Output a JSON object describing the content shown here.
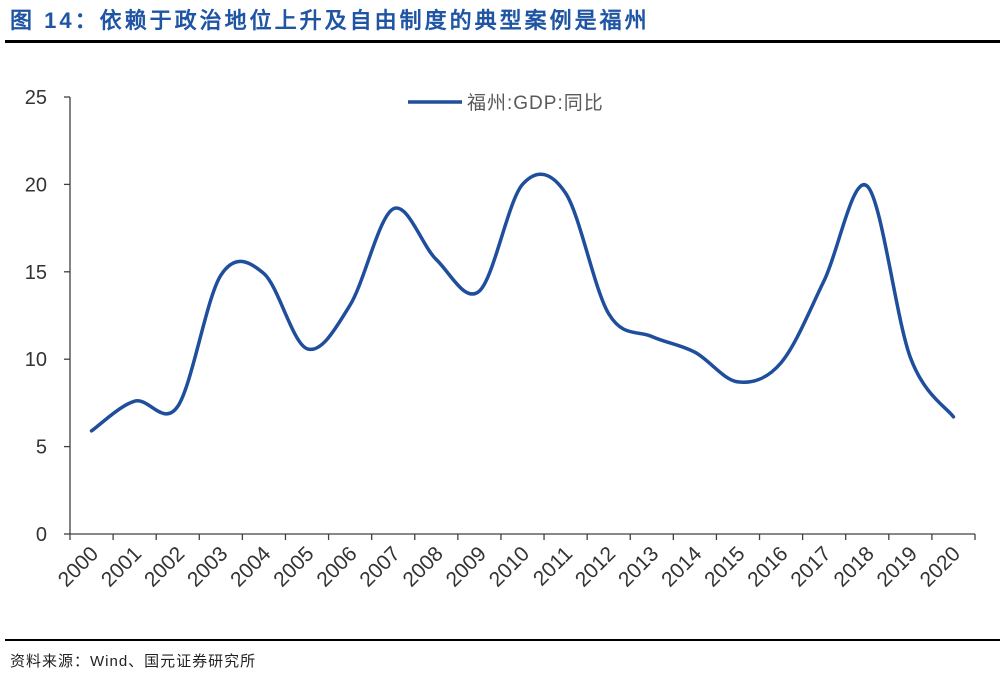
{
  "figure": {
    "title": "图 14：依赖于政治地位上升及自由制度的典型案例是福州",
    "source": "资料来源：Wind、国元证券研究所"
  },
  "colors": {
    "title": "#1f55a3",
    "series": "#1f4e9c",
    "axis": "#404040",
    "rule": "#000000"
  },
  "chart_data": {
    "type": "line",
    "smooth": true,
    "categories": [
      "2000",
      "2001",
      "2002",
      "2003",
      "2004",
      "2005",
      "2006",
      "2007",
      "2008",
      "2009",
      "2010",
      "2011",
      "2012",
      "2013",
      "2014",
      "2015",
      "2016",
      "2017",
      "2018",
      "2019",
      "2020"
    ],
    "series": [
      {
        "name": "福州:GDP:同比",
        "values": [
          5.9,
          7.6,
          7.3,
          14.8,
          14.9,
          10.6,
          13.1,
          18.6,
          15.7,
          13.9,
          20.0,
          19.5,
          12.6,
          11.3,
          10.4,
          8.7,
          9.8,
          14.5,
          19.9,
          10.1,
          6.7
        ]
      }
    ],
    "ylim": [
      0,
      25
    ],
    "yticks": [
      0,
      5,
      10,
      15,
      20,
      25
    ],
    "grid": false,
    "legend": "top-center"
  }
}
